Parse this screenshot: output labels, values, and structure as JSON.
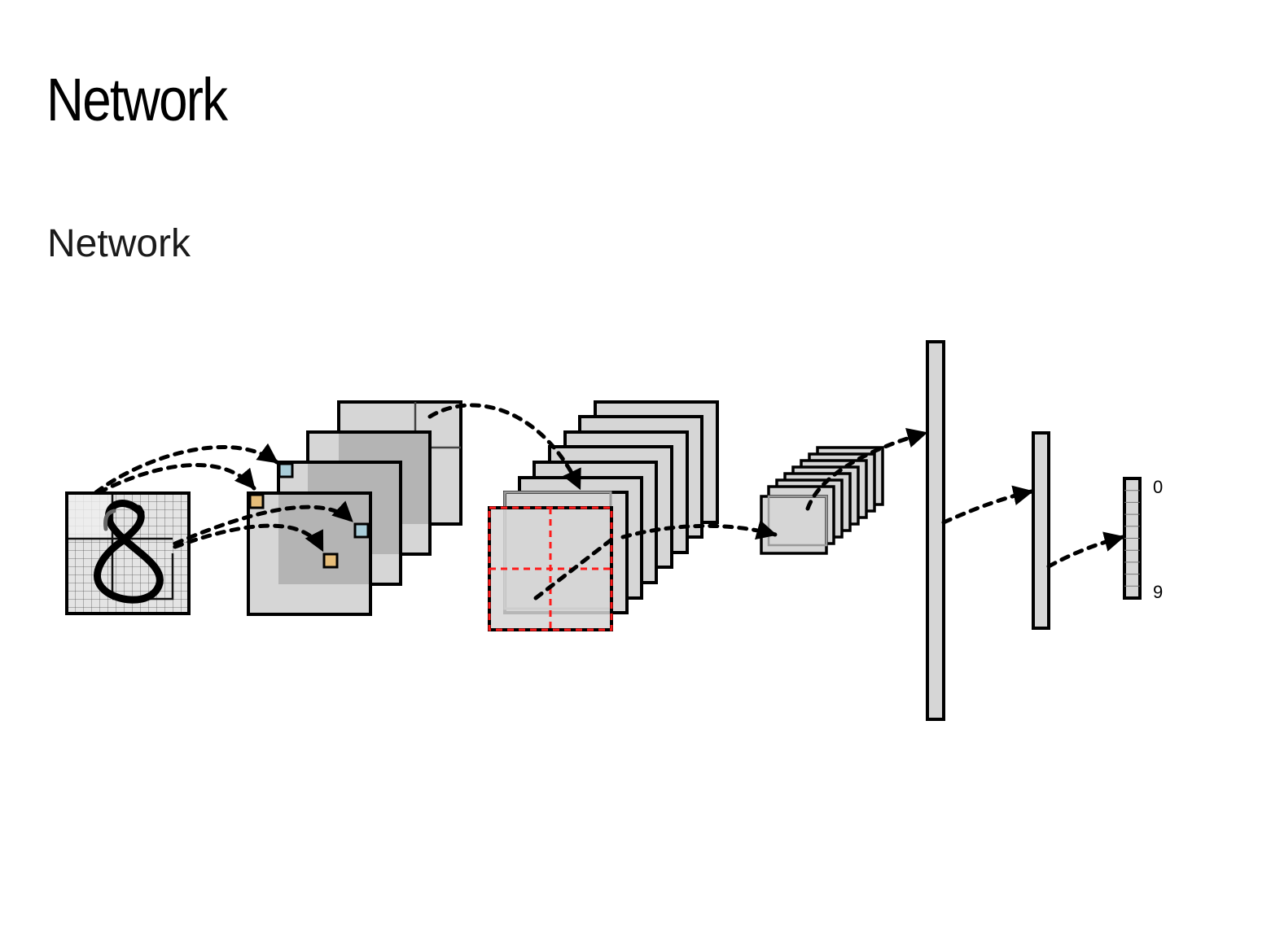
{
  "slide": {
    "title": "Network",
    "subtitle": "Network"
  },
  "diagram": {
    "output_labels": {
      "first": "0",
      "last": "9"
    },
    "colors": {
      "plane_fill": "#d6d6d6",
      "plane_dark": "#b4b4b4",
      "stroke": "#000000",
      "kernel_blue": "#a9cdd9",
      "kernel_orange": "#e6bd79",
      "pool_grid": "#ff1a1a"
    }
  }
}
